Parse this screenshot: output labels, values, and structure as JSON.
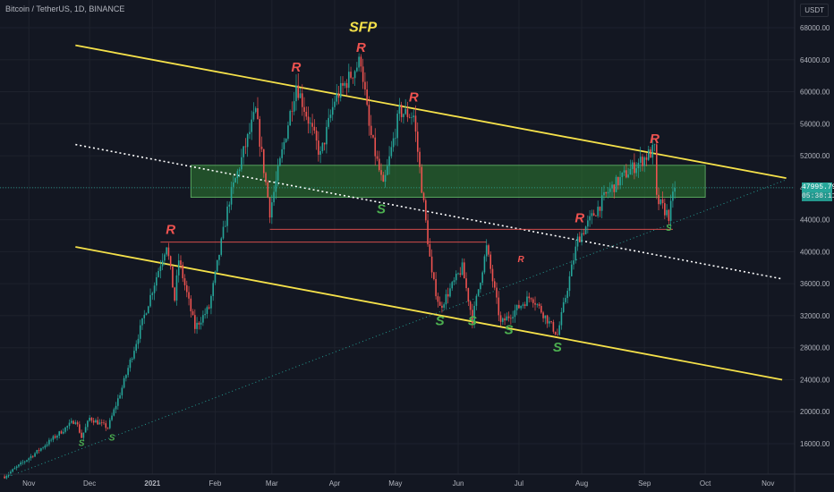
{
  "header": {
    "title": "Bitcoin / TetherUS, 1D, BINANCE",
    "currency": "USDT"
  },
  "current_price": {
    "label": "47995.79",
    "countdown": "05:38:11",
    "value": 47995.79
  },
  "colors": {
    "bg": "#131722",
    "bull": "#26a69a",
    "bear": "#ef5350",
    "channel": "#f5e14a",
    "zone": "#2e7d32",
    "resistance": "#ef5350",
    "support": "#4caf50"
  },
  "chart_data": {
    "type": "candlestick",
    "y_ticks": [
      16000,
      20000,
      24000,
      28000,
      32000,
      36000,
      40000,
      44000,
      48000,
      52000,
      56000,
      60000,
      64000,
      68000
    ],
    "y_tick_labels": [
      "16000.00",
      "20000.00",
      "24000.00",
      "28000.00",
      "32000.00",
      "36000.00",
      "40000.00",
      "44000.00",
      "48000.00",
      "52000.00",
      "56000.00",
      "60000.00",
      "64000.00",
      "68000.00"
    ],
    "x_ticks": [
      {
        "label": "Nov",
        "date": "2020-11-01"
      },
      {
        "label": "Dec",
        "date": "2020-12-01"
      },
      {
        "label": "2021",
        "date": "2021-01-01"
      },
      {
        "label": "Feb",
        "date": "2021-02-01"
      },
      {
        "label": "Mar",
        "date": "2021-03-01"
      },
      {
        "label": "Apr",
        "date": "2021-04-01"
      },
      {
        "label": "May",
        "date": "2021-05-01"
      },
      {
        "label": "Jun",
        "date": "2021-06-01"
      },
      {
        "label": "Jul",
        "date": "2021-07-01"
      },
      {
        "label": "Aug",
        "date": "2021-08-01"
      },
      {
        "label": "Sep",
        "date": "2021-09-01"
      },
      {
        "label": "Oct",
        "date": "2021-10-01"
      },
      {
        "label": "Nov",
        "date": "2021-11-01"
      }
    ],
    "price_path": [
      [
        "2020-10-20",
        11900
      ],
      [
        "2020-11-05",
        15000
      ],
      [
        "2020-11-24",
        19000
      ],
      [
        "2020-11-27",
        16800
      ],
      [
        "2020-12-01",
        19200
      ],
      [
        "2020-12-10",
        18000
      ],
      [
        "2020-12-17",
        23000
      ],
      [
        "2021-01-08",
        41000
      ],
      [
        "2021-01-12",
        34000
      ],
      [
        "2021-01-14",
        39000
      ],
      [
        "2021-01-22",
        30500
      ],
      [
        "2021-01-29",
        33000
      ],
      [
        "2021-02-08",
        46500
      ],
      [
        "2021-02-21",
        57500
      ],
      [
        "2021-02-28",
        45000
      ],
      [
        "2021-03-13",
        61000
      ],
      [
        "2021-03-25",
        52000
      ],
      [
        "2021-04-01",
        59000
      ],
      [
        "2021-04-14",
        64000
      ],
      [
        "2021-04-18",
        55500
      ],
      [
        "2021-04-25",
        48000
      ],
      [
        "2021-05-03",
        57500
      ],
      [
        "2021-05-10",
        57000
      ],
      [
        "2021-05-19",
        37000
      ],
      [
        "2021-05-23",
        33000
      ],
      [
        "2021-06-03",
        38000
      ],
      [
        "2021-06-08",
        31500
      ],
      [
        "2021-06-15",
        40500
      ],
      [
        "2021-06-22",
        31000
      ],
      [
        "2021-07-07",
        34500
      ],
      [
        "2021-07-20",
        29600
      ],
      [
        "2021-07-30",
        41500
      ],
      [
        "2021-08-14",
        47500
      ],
      [
        "2021-08-23",
        49800
      ],
      [
        "2021-09-06",
        52800
      ],
      [
        "2021-09-07",
        46500
      ],
      [
        "2021-09-13",
        44500
      ],
      [
        "2021-09-16",
        47996
      ]
    ],
    "annotations": [
      {
        "text": "SFP",
        "date": "2021-04-15",
        "price": 67500,
        "color": "#f5e14a",
        "size": 16
      },
      {
        "text": "R",
        "date": "2021-04-14",
        "price": 65000,
        "color": "#ef5350",
        "size": 15
      },
      {
        "text": "R",
        "date": "2021-03-13",
        "price": 62500,
        "color": "#ef5350",
        "size": 15
      },
      {
        "text": "R",
        "date": "2021-05-10",
        "price": 58800,
        "color": "#ef5350",
        "size": 15
      },
      {
        "text": "R",
        "date": "2021-09-06",
        "price": 53600,
        "color": "#ef5350",
        "size": 15
      },
      {
        "text": "R",
        "date": "2021-01-10",
        "price": 42200,
        "color": "#ef5350",
        "size": 15
      },
      {
        "text": "R",
        "date": "2021-07-31",
        "price": 43700,
        "color": "#ef5350",
        "size": 15
      },
      {
        "text": "R",
        "date": "2021-07-02",
        "price": 38700,
        "color": "#ef5350",
        "size": 10
      },
      {
        "text": "S",
        "date": "2021-04-24",
        "price": 44800,
        "color": "#4caf50",
        "size": 15
      },
      {
        "text": "S",
        "date": "2021-05-23",
        "price": 30800,
        "color": "#4caf50",
        "size": 15
      },
      {
        "text": "S",
        "date": "2021-06-08",
        "price": 30800,
        "color": "#4caf50",
        "size": 15
      },
      {
        "text": "S",
        "date": "2021-06-26",
        "price": 29700,
        "color": "#4caf50",
        "size": 15
      },
      {
        "text": "S",
        "date": "2021-07-20",
        "price": 27500,
        "color": "#4caf50",
        "size": 15
      },
      {
        "text": "S",
        "date": "2021-09-13",
        "price": 42600,
        "color": "#4caf50",
        "size": 10
      },
      {
        "text": "S",
        "date": "2020-11-27",
        "price": 15700,
        "color": "#4caf50",
        "size": 10
      },
      {
        "text": "S",
        "date": "2020-12-12",
        "price": 16400,
        "color": "#4caf50",
        "size": 10
      }
    ],
    "lines": [
      {
        "name": "channel-upper",
        "from": [
          "2020-11-24",
          65800
        ],
        "to": [
          "2021-11-10",
          49200
        ],
        "color": "#f5e14a",
        "style": "solid"
      },
      {
        "name": "channel-lower",
        "from": [
          "2020-11-24",
          40600
        ],
        "to": [
          "2021-11-08",
          24000
        ],
        "color": "#f5e14a",
        "style": "solid"
      },
      {
        "name": "channel-mid",
        "from": [
          "2020-11-24",
          53400
        ],
        "to": [
          "2021-11-08",
          36600
        ],
        "color": "#ffffff",
        "style": "dotted"
      },
      {
        "name": "rising-trendline",
        "from": [
          "2020-10-20",
          11700
        ],
        "to": [
          "2021-11-10",
          49000
        ],
        "color": "#26a69a",
        "style": "dotted"
      },
      {
        "name": "resistance-jan",
        "from": [
          "2021-01-05",
          41200
        ],
        "to": [
          "2021-06-15",
          41200
        ],
        "color": "#ef5350",
        "style": "solid"
      },
      {
        "name": "resistance-aug",
        "from": [
          "2021-02-28",
          42800
        ],
        "to": [
          "2021-09-15",
          42800
        ],
        "color": "#ef5350",
        "style": "solid"
      }
    ],
    "zone": {
      "from": "2021-01-20",
      "to": "2021-10-01",
      "low": 46800,
      "high": 50800
    },
    "price_line": 47995.79
  }
}
